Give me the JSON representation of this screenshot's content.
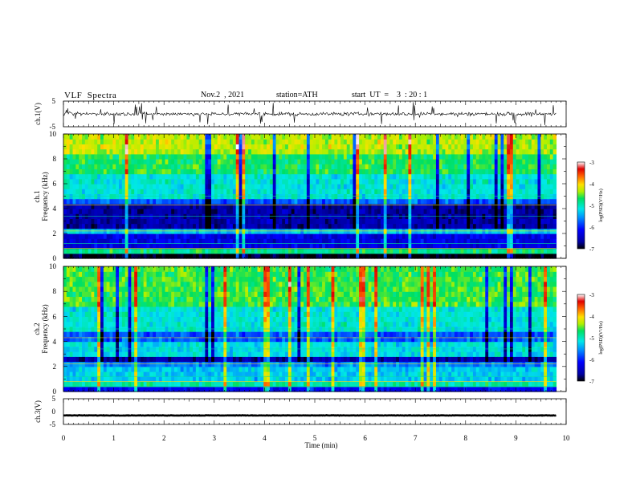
{
  "header": {
    "title": "VLF  Spectra",
    "date": "Nov.2  , 2021",
    "station": "station=ATH",
    "start": "start  UT  =    3  : 20 : 1"
  },
  "chart_data": [
    {
      "type": "line",
      "name": "ch1-waveform",
      "ylabel": "ch.1(V)",
      "ylim": [
        -5,
        5
      ],
      "yticks": [
        "5",
        "-5"
      ],
      "xlim": [
        0,
        10
      ],
      "trace_x_max": 9.8,
      "baseline": 0
    },
    {
      "type": "heatmap",
      "name": "ch1-spectrogram",
      "ylabel_top": "ch.1",
      "ylabel": "Frequency  (kHz)",
      "ylim": [
        0,
        10
      ],
      "yticks": [
        "0",
        "2",
        "4",
        "6",
        "8",
        "10"
      ],
      "xlim": [
        0,
        10
      ],
      "data_x_max": 9.8,
      "colorbar": {
        "label": "log(PSD)(V²/Hz)",
        "range": [
          -7,
          -3
        ],
        "ticks": [
          "-3",
          "-4",
          "-5",
          "-6",
          "-7"
        ]
      },
      "bands": [
        {
          "from": 0,
          "to": 0.3,
          "level": -7.0
        },
        {
          "from": 0.3,
          "to": 0.9,
          "level": -4.8
        },
        {
          "from": 0.9,
          "to": 2.2,
          "level": -6.3
        },
        {
          "from": 2.2,
          "to": 2.5,
          "level": -5.3
        },
        {
          "from": 2.5,
          "to": 4.6,
          "level": -6.6
        },
        {
          "from": 4.6,
          "to": 5.0,
          "level": -5.8
        },
        {
          "from": 5.0,
          "to": 7.0,
          "level": -5.1
        },
        {
          "from": 7.0,
          "to": 8.5,
          "level": -4.7
        },
        {
          "from": 8.5,
          "to": 10,
          "level": -4.3
        }
      ]
    },
    {
      "type": "heatmap",
      "name": "ch2-spectrogram",
      "ylabel_top": "ch.2",
      "ylabel": "Frequency  (kHz)",
      "ylim": [
        0,
        10
      ],
      "yticks": [
        "0",
        "2",
        "4",
        "6",
        "8",
        "10"
      ],
      "xlim": [
        0,
        10
      ],
      "data_x_max": 9.8,
      "colorbar": {
        "label": "log(PSD)(V²/Hz)",
        "range": [
          -7,
          -3
        ],
        "ticks": [
          "-3",
          "-4",
          "-5",
          "-6",
          "-7"
        ]
      },
      "bands": [
        {
          "from": 0,
          "to": 0.3,
          "level": -6.2
        },
        {
          "from": 0.3,
          "to": 1.0,
          "level": -4.9
        },
        {
          "from": 1.0,
          "to": 2.0,
          "level": -5.3
        },
        {
          "from": 2.0,
          "to": 2.5,
          "level": -5.6
        },
        {
          "from": 2.5,
          "to": 3.0,
          "level": -6.6
        },
        {
          "from": 3.0,
          "to": 4.0,
          "level": -5.2
        },
        {
          "from": 4.0,
          "to": 5.0,
          "level": -5.8
        },
        {
          "from": 5.0,
          "to": 7.0,
          "level": -5.1
        },
        {
          "from": 7.0,
          "to": 10,
          "level": -4.6
        }
      ]
    },
    {
      "type": "line",
      "name": "ch3-waveform",
      "ylabel": "ch.3(V)",
      "ylim": [
        -5,
        5
      ],
      "yticks": [
        "5",
        "0",
        "-5"
      ],
      "xlim": [
        0,
        10
      ],
      "trace_x_max": 9.8,
      "baseline": -1.5,
      "xlabel": "Time  (min)",
      "xticks": [
        "0",
        "1",
        "2",
        "3",
        "4",
        "5",
        "6",
        "7",
        "8",
        "9",
        "10"
      ]
    }
  ]
}
